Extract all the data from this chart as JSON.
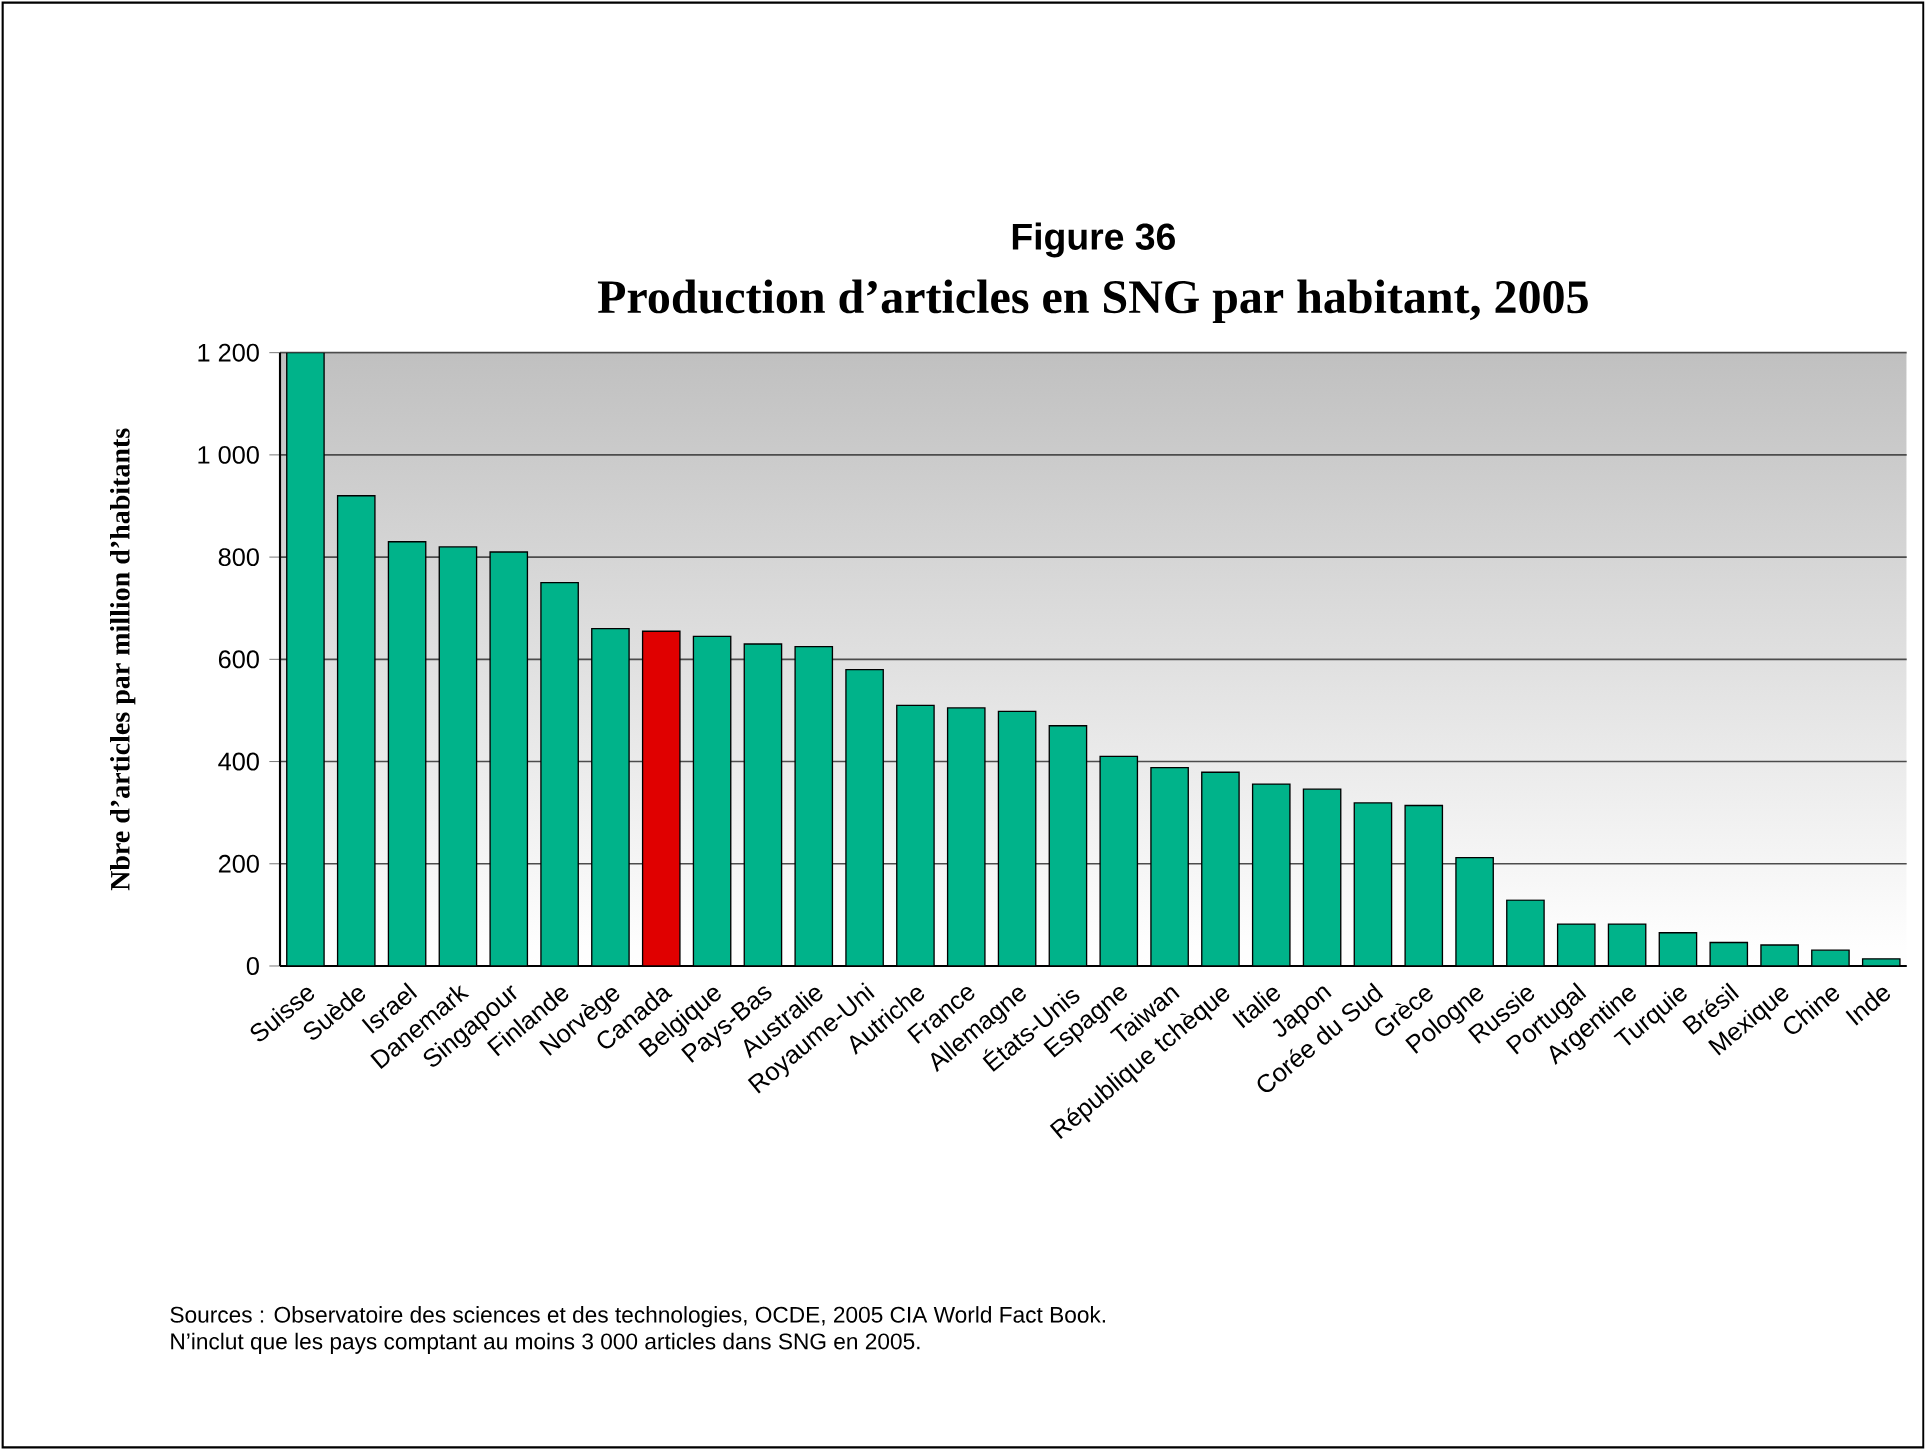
{
  "chart_data": {
    "type": "bar",
    "title": "Figure 36",
    "subtitle": "Production d’articles en SNG par habitant, 2005",
    "ylabel": "Nbre d’articles par million d’habitants",
    "categories": [
      "Suisse",
      "Suède",
      "Israel",
      "Danemark",
      "Singapour",
      "Finlande",
      "Norvège",
      "Canada",
      "Belgique",
      "Pays-Bas",
      "Australie",
      "Royaume-Uni",
      "Autriche",
      "France",
      "Allemagne",
      "États-Unis",
      "Espagne",
      "Taiwan",
      "République tchèque",
      "Italie",
      "Japon",
      "Corée du Sud",
      "Grèce",
      "Pologne",
      "Russie",
      "Portugal",
      "Argentine",
      "Turquie",
      "Brésil",
      "Mexique",
      "Chine",
      "Inde"
    ],
    "values": [
      1200,
      920,
      830,
      820,
      810,
      750,
      660,
      655,
      645,
      630,
      625,
      580,
      510,
      505,
      498,
      470,
      410,
      388,
      379,
      356,
      346,
      319,
      314,
      212,
      129,
      82,
      82,
      65,
      46,
      41,
      31,
      14
    ],
    "colors": [
      "#00b38a",
      "#00b38a",
      "#00b38a",
      "#00b38a",
      "#00b38a",
      "#00b38a",
      "#00b38a",
      "#e00000",
      "#00b38a",
      "#00b38a",
      "#00b38a",
      "#00b38a",
      "#00b38a",
      "#00b38a",
      "#00b38a",
      "#00b38a",
      "#00b38a",
      "#00b38a",
      "#00b38a",
      "#00b38a",
      "#00b38a",
      "#00b38a",
      "#00b38a",
      "#00b38a",
      "#00b38a",
      "#00b38a",
      "#00b38a",
      "#00b38a",
      "#00b38a",
      "#00b38a",
      "#00b38a",
      "#00b38a"
    ],
    "ylim": [
      0,
      1200
    ],
    "yticks": [
      0,
      200,
      400,
      600,
      800,
      {
        "value": 1000,
        "label": "1 000"
      },
      {
        "value": 1200,
        "label": "1 200"
      }
    ],
    "grid": "y",
    "annotations": [
      "Sources : Observatoire des sciences et des technologies, OCDE, 2005 CIA World Fact Book.",
      "N’inclut que les pays comptant au moins 3 000 articles dans SNG en  2005."
    ]
  }
}
